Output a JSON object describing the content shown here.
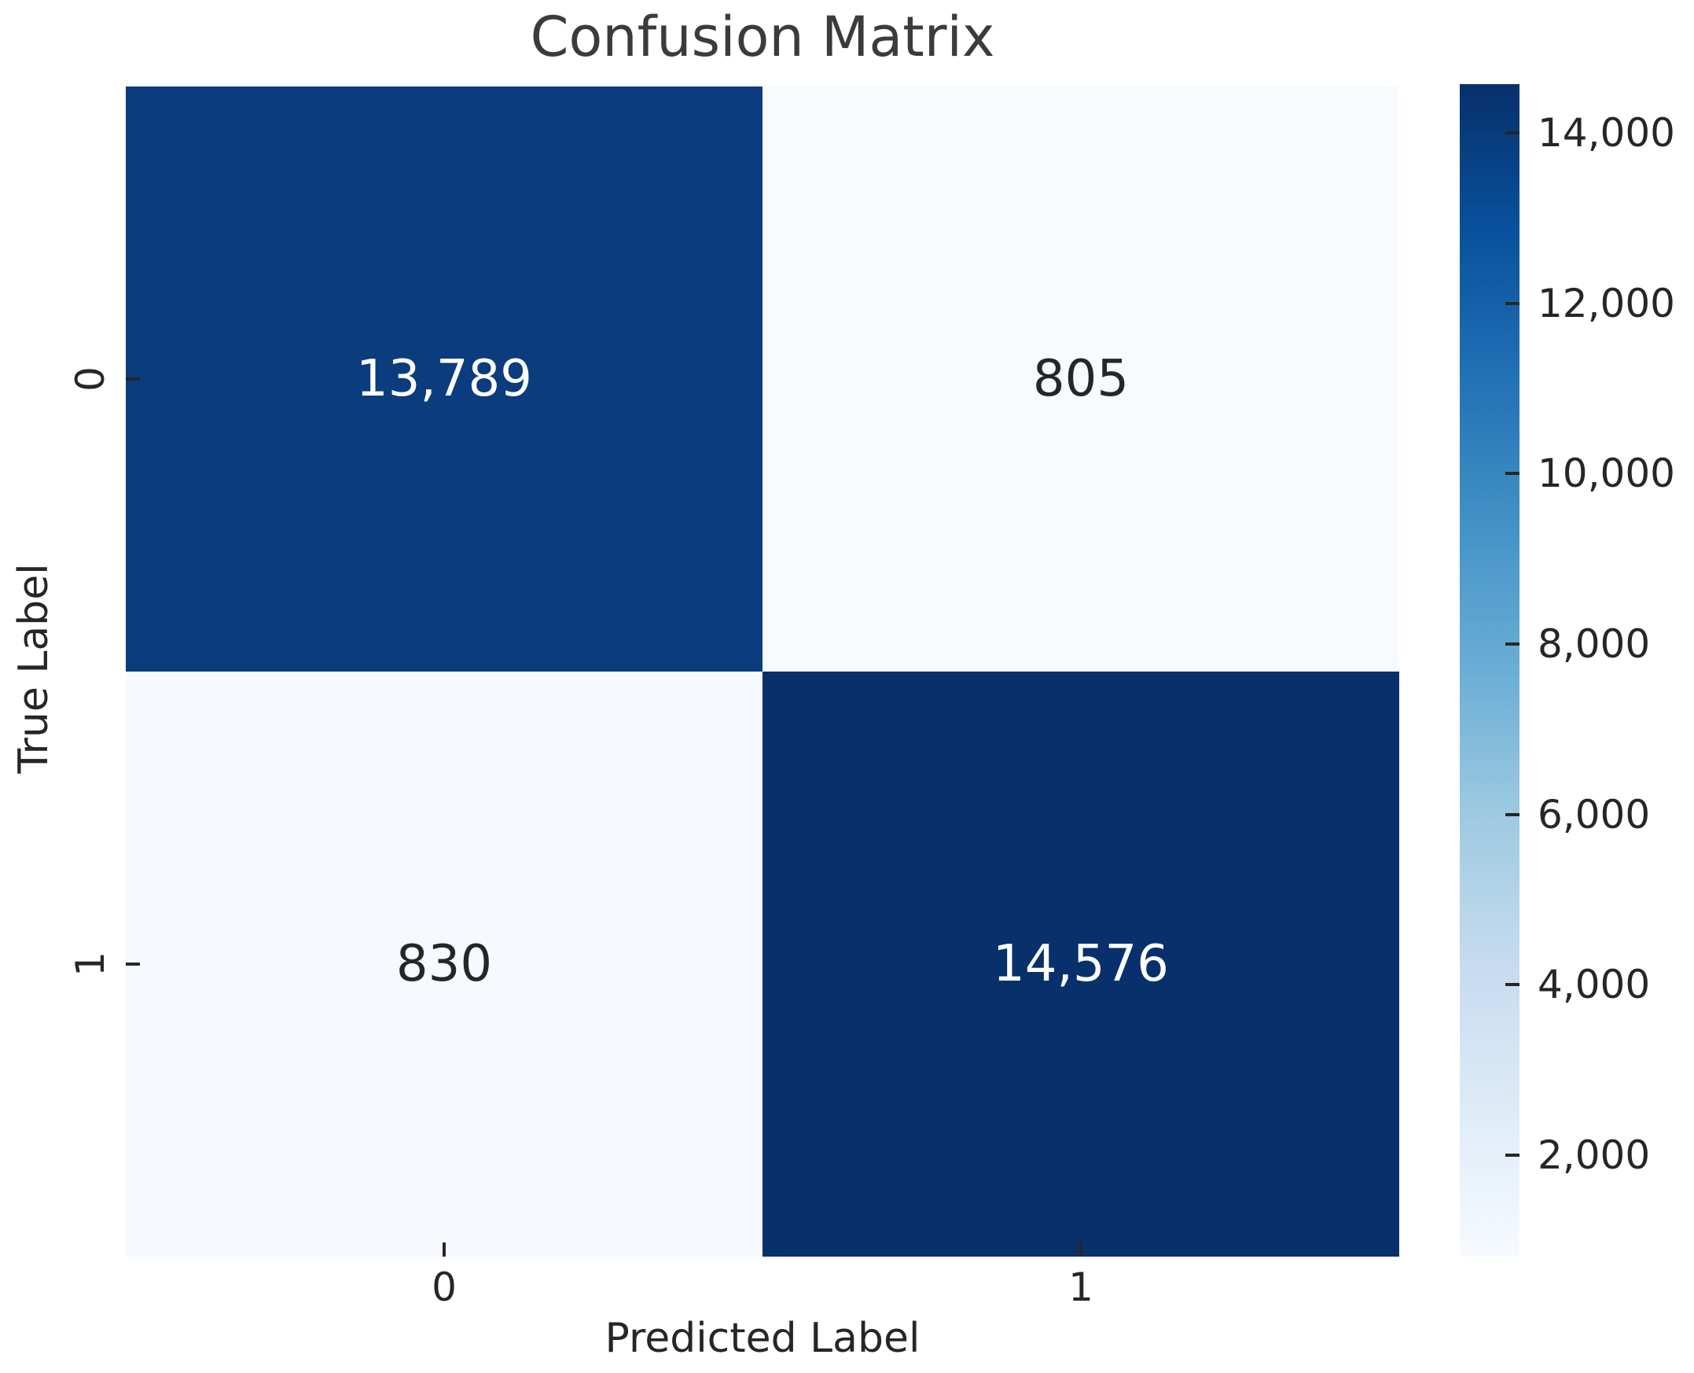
{
  "figure": {
    "background": "#ffffff",
    "title_color": "#3b3b3b",
    "text_color": "#262626"
  },
  "chart_data": {
    "type": "heatmap",
    "title": "Confusion Matrix",
    "xlabel": "Predicted Label",
    "ylabel": "True Label",
    "x_tick_labels": [
      "0",
      "1"
    ],
    "y_tick_labels": [
      "0",
      "1"
    ],
    "matrix": [
      [
        13789,
        805
      ],
      [
        830,
        14576
      ]
    ],
    "cell_labels": [
      [
        "13,789",
        "805"
      ],
      [
        "830",
        "14,576"
      ]
    ],
    "cell_colors": [
      [
        "#0a3c7e",
        "#f7fbfe"
      ],
      [
        "#f6fafe",
        "#08306b"
      ]
    ],
    "cell_text_colors": [
      [
        "#ffffff",
        "#262626"
      ],
      [
        "#262626",
        "#ffffff"
      ]
    ],
    "colormap": "Blues",
    "colormap_stops": [
      "#f7fbff",
      "#deebf7",
      "#c6dbef",
      "#9ecae1",
      "#6baed6",
      "#4292c6",
      "#2171b5",
      "#08519c",
      "#08306b"
    ],
    "vmin": 805,
    "vmax": 14576,
    "colorbar_ticks": [
      14000,
      12000,
      10000,
      8000,
      6000,
      4000,
      2000
    ],
    "colorbar_tick_labels": [
      "14,000",
      "12,000",
      "10,000",
      "8,000",
      "6,000",
      "4,000",
      "2,000"
    ],
    "legend_position": "right-colorbar",
    "grid": false
  }
}
